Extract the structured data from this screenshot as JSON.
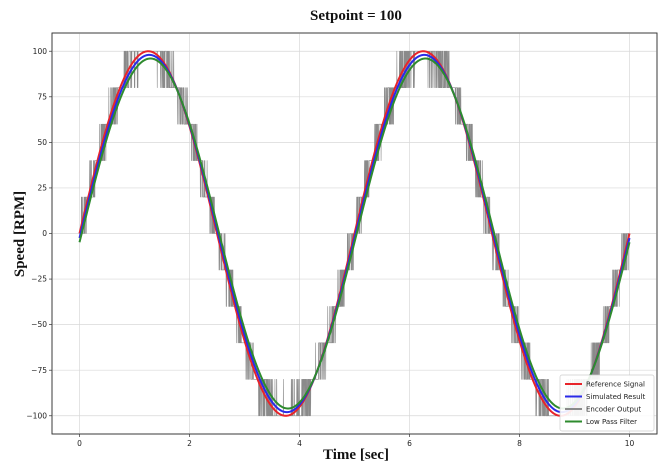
{
  "chart_data": {
    "type": "line",
    "title": "Setpoint = 100",
    "xlabel": "Time [sec]",
    "ylabel": "Speed [RPM]",
    "xlim": [
      -0.5,
      10.5
    ],
    "ylim": [
      -110,
      110
    ],
    "xticks": [
      0,
      2,
      4,
      6,
      8,
      10
    ],
    "yticks": [
      100,
      75,
      50,
      25,
      0,
      -25,
      -50,
      -75,
      -100
    ],
    "xtick_labels": [
      "0",
      "2",
      "4",
      "6",
      "8",
      "10"
    ],
    "ytick_labels": [
      "100",
      "75",
      "50",
      "25",
      "0",
      "−25",
      "−50",
      "−75",
      "−100"
    ],
    "grid": true,
    "legend_position": "bottom-right",
    "signal": {
      "amplitude": 100,
      "period_sec": 5,
      "t_start": 0,
      "t_end": 10
    },
    "series": [
      {
        "name": "Reference Signal",
        "color": "#e8242a",
        "amplitude": 100,
        "phase_lag_sec": 0
      },
      {
        "name": "Simulated Result",
        "color": "#2a2ae8",
        "amplitude": 98,
        "phase_lag_sec": 0.02
      },
      {
        "name": "Encoder Output",
        "color": "#8a8a8a",
        "quantization_step": 20,
        "amplitude": 100
      },
      {
        "name": "Low Pass Filter",
        "color": "#2e8b2e",
        "amplitude": 96,
        "phase_lag_sec": 0.04
      }
    ]
  }
}
